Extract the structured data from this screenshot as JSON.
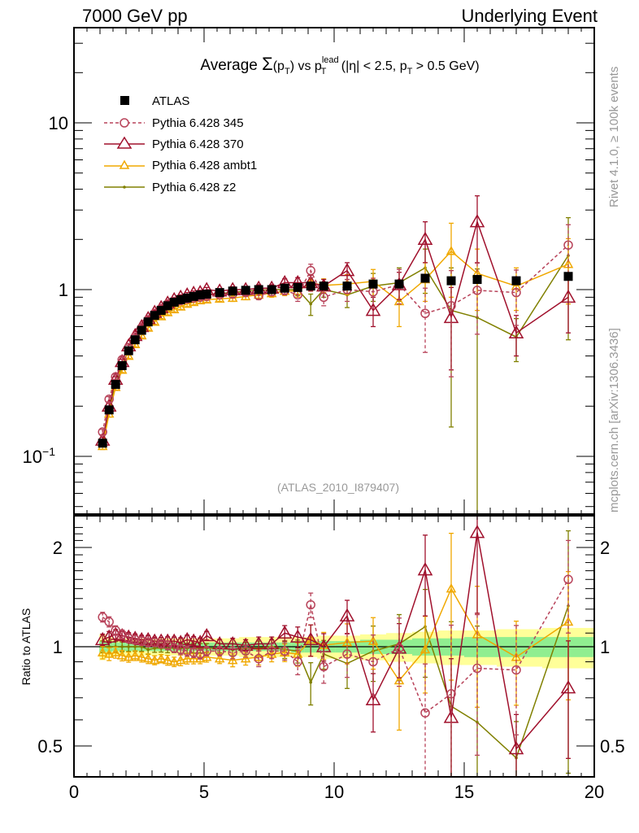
{
  "header": {
    "left": "7000 GeV pp",
    "right": "Underlying Event"
  },
  "side_labels": {
    "rivet": "Rivet 4.1.0, ≥ 100k events",
    "mcplots": "mcplots.cern.ch [arXiv:1306.3436]"
  },
  "analysis_id": "(ATLAS_2010_I879407)",
  "chart_data": [
    {
      "type": "scatter",
      "panel": "main",
      "title": "Average Σ(p_T) vs p_T^lead (|η| < 2.5, p_T > 0.5 GeV)",
      "title_parts": {
        "prefix": "Average ",
        "sigma": "Σ",
        "pt1": "(p",
        "sub1": "T",
        "pt1_close": ")",
        "vs": " vs p",
        "sup_lead": "lead",
        "sub2": "T",
        "cut": " (|η| < 2.5, p",
        "sub3": "T",
        "tail": " > 0.5 GeV)"
      },
      "xlabel": "",
      "ylabel": "",
      "xlim": [
        0,
        20
      ],
      "ylim": [
        0.045,
        40
      ],
      "yscale": "log",
      "x_ticks": [
        "0",
        "5",
        "10",
        "15",
        "20"
      ],
      "y_ticks": [
        {
          "value": 10,
          "label": "10"
        },
        {
          "value": 1,
          "label": "1"
        },
        {
          "value": 0.1,
          "label": "10",
          "sup": "−1"
        }
      ],
      "legend_position": "top-left",
      "x": [
        1.1,
        1.35,
        1.6,
        1.85,
        2.1,
        2.35,
        2.6,
        2.85,
        3.1,
        3.35,
        3.6,
        3.85,
        4.1,
        4.35,
        4.6,
        4.85,
        5.1,
        5.6,
        6.1,
        6.6,
        7.1,
        7.6,
        8.1,
        8.6,
        9.1,
        9.6,
        10.5,
        11.5,
        12.5,
        13.5,
        14.5,
        15.5,
        17.0,
        19.0
      ],
      "series": [
        {
          "name": "ATLAS",
          "color": "#000000",
          "marker": "square",
          "values": [
            0.12,
            0.19,
            0.27,
            0.35,
            0.43,
            0.5,
            0.57,
            0.64,
            0.7,
            0.75,
            0.8,
            0.84,
            0.87,
            0.89,
            0.91,
            0.93,
            0.94,
            0.96,
            0.98,
            0.99,
            1.0,
            1.0,
            1.02,
            1.03,
            1.05,
            1.05,
            1.05,
            1.08,
            1.08,
            1.17,
            1.13,
            1.15,
            1.13,
            1.2
          ]
        },
        {
          "name": "Pythia 6.428 345",
          "color": "#b8435a",
          "marker": "circle",
          "dashed": true,
          "values": [
            0.14,
            0.22,
            0.3,
            0.38,
            0.45,
            0.52,
            0.59,
            0.66,
            0.72,
            0.77,
            0.82,
            0.85,
            0.86,
            0.88,
            0.89,
            0.9,
            0.91,
            0.93,
            0.94,
            0.96,
            0.92,
            0.97,
            0.99,
            0.93,
            1.3,
            0.9,
            1.0,
            0.97,
            1.07,
            0.72,
            0.8,
            0.99,
            0.96,
            1.85
          ],
          "err": [
            0.005,
            0.008,
            0.01,
            0.012,
            0.014,
            0.016,
            0.018,
            0.02,
            0.02,
            0.02,
            0.025,
            0.025,
            0.03,
            0.03,
            0.03,
            0.03,
            0.03,
            0.03,
            0.04,
            0.04,
            0.05,
            0.05,
            0.06,
            0.08,
            0.12,
            0.1,
            0.15,
            0.2,
            0.25,
            0.3,
            0.5,
            0.45,
            0.35,
            0.6
          ]
        },
        {
          "name": "Pythia 6.428 370",
          "color": "#a0102c",
          "marker": "triangle-large",
          "values": [
            0.125,
            0.2,
            0.29,
            0.37,
            0.46,
            0.53,
            0.6,
            0.67,
            0.73,
            0.78,
            0.83,
            0.87,
            0.9,
            0.93,
            0.95,
            0.96,
            1.0,
            0.98,
            1.0,
            1.0,
            1.02,
            1.02,
            1.1,
            1.1,
            1.1,
            1.05,
            1.3,
            0.75,
            1.07,
            2.0,
            0.68,
            2.55,
            0.55,
            0.9
          ],
          "err": [
            0.005,
            0.008,
            0.01,
            0.012,
            0.014,
            0.016,
            0.018,
            0.02,
            0.02,
            0.02,
            0.025,
            0.025,
            0.03,
            0.03,
            0.03,
            0.03,
            0.03,
            0.03,
            0.04,
            0.04,
            0.05,
            0.05,
            0.06,
            0.08,
            0.12,
            0.1,
            0.15,
            0.15,
            0.2,
            0.55,
            0.35,
            1.1,
            0.15,
            0.35
          ]
        },
        {
          "name": "Pythia 6.428 ambt1",
          "color": "#f0a800",
          "marker": "triangle-small",
          "values": [
            0.115,
            0.18,
            0.26,
            0.33,
            0.4,
            0.47,
            0.53,
            0.59,
            0.64,
            0.69,
            0.73,
            0.76,
            0.79,
            0.82,
            0.84,
            0.86,
            0.87,
            0.88,
            0.89,
            0.91,
            0.93,
            0.95,
            0.98,
            0.98,
            1.1,
            1.06,
            1.08,
            1.12,
            0.85,
            1.15,
            1.7,
            1.25,
            1.05,
            1.42
          ],
          "err": [
            0.005,
            0.008,
            0.01,
            0.012,
            0.014,
            0.016,
            0.018,
            0.02,
            0.02,
            0.02,
            0.025,
            0.025,
            0.03,
            0.03,
            0.03,
            0.03,
            0.03,
            0.03,
            0.04,
            0.04,
            0.05,
            0.05,
            0.06,
            0.08,
            0.12,
            0.1,
            0.15,
            0.2,
            0.25,
            0.3,
            0.8,
            0.5,
            0.3,
            0.6
          ]
        },
        {
          "name": "Pythia 6.428 z2",
          "color": "#808000",
          "marker": "dot",
          "values": [
            0.12,
            0.19,
            0.27,
            0.35,
            0.43,
            0.5,
            0.57,
            0.63,
            0.69,
            0.74,
            0.79,
            0.83,
            0.86,
            0.88,
            0.9,
            0.92,
            0.93,
            0.95,
            0.96,
            0.98,
            0.99,
            1.0,
            1.0,
            1.0,
            0.82,
            1.0,
            0.93,
            1.05,
            1.1,
            1.35,
            0.75,
            0.68,
            0.52,
            1.6
          ],
          "err": [
            0.005,
            0.008,
            0.01,
            0.012,
            0.014,
            0.016,
            0.018,
            0.02,
            0.02,
            0.02,
            0.025,
            0.025,
            0.03,
            0.03,
            0.03,
            0.03,
            0.03,
            0.03,
            0.04,
            0.04,
            0.05,
            0.05,
            0.06,
            0.08,
            0.12,
            0.1,
            0.15,
            0.2,
            0.25,
            0.4,
            0.6,
            0.65,
            0.15,
            1.1
          ]
        }
      ]
    },
    {
      "type": "scatter",
      "panel": "ratio",
      "ylabel": "Ratio to ATLAS",
      "xlim": [
        0,
        20
      ],
      "ylim": [
        0.4,
        2.35
      ],
      "yscale": "log",
      "y_ticks": [
        {
          "value": 2,
          "label": "2"
        },
        {
          "value": 1,
          "label": "1"
        },
        {
          "value": 0.5,
          "label": "0.5"
        }
      ],
      "x_ticks": [
        "0",
        "5",
        "10",
        "15",
        "20"
      ],
      "bands": {
        "stat_color": "#90ee90",
        "total_color": "#ffff99",
        "stat_halfwidth": [
          0.04,
          0.035,
          0.03,
          0.03,
          0.03,
          0.03,
          0.03,
          0.03,
          0.03,
          0.03,
          0.03,
          0.03,
          0.03,
          0.03,
          0.03,
          0.03,
          0.03,
          0.03,
          0.03,
          0.03,
          0.03,
          0.03,
          0.03,
          0.04,
          0.04,
          0.04,
          0.04,
          0.05,
          0.05,
          0.06,
          0.06,
          0.07,
          0.07,
          0.07
        ],
        "total_halfwidth": [
          0.09,
          0.07,
          0.06,
          0.06,
          0.06,
          0.06,
          0.06,
          0.06,
          0.06,
          0.06,
          0.06,
          0.06,
          0.06,
          0.06,
          0.06,
          0.06,
          0.06,
          0.06,
          0.06,
          0.07,
          0.07,
          0.07,
          0.07,
          0.07,
          0.07,
          0.08,
          0.08,
          0.09,
          0.1,
          0.11,
          0.12,
          0.12,
          0.13,
          0.14
        ]
      },
      "series": [
        {
          "name": "Pythia 6.428 345",
          "values": [
            1.23,
            1.19,
            1.12,
            1.09,
            1.06,
            1.05,
            1.04,
            1.03,
            1.03,
            1.02,
            1.01,
            0.99,
            0.98,
            0.97,
            0.96,
            0.95,
            0.97,
            0.97,
            0.96,
            0.97,
            0.92,
            0.97,
            0.97,
            0.9,
            1.34,
            0.87,
            0.95,
            0.9,
            0.99,
            0.63,
            0.72,
            0.86,
            0.85,
            1.6
          ]
        },
        {
          "name": "Pythia 6.428 370",
          "values": [
            1.05,
            1.07,
            1.09,
            1.08,
            1.07,
            1.06,
            1.05,
            1.05,
            1.04,
            1.04,
            1.04,
            1.04,
            1.03,
            1.05,
            1.04,
            1.03,
            1.08,
            1.02,
            1.02,
            1.01,
            1.02,
            1.02,
            1.1,
            1.07,
            1.05,
            1.0,
            1.24,
            0.69,
            0.99,
            1.71,
            0.61,
            2.22,
            0.49,
            0.75
          ]
        },
        {
          "name": "Pythia 6.428 ambt1",
          "values": [
            0.96,
            0.95,
            0.96,
            0.94,
            0.93,
            0.94,
            0.93,
            0.92,
            0.91,
            0.92,
            0.91,
            0.9,
            0.91,
            0.92,
            0.92,
            0.92,
            0.93,
            0.92,
            0.91,
            0.92,
            0.93,
            0.95,
            0.96,
            0.95,
            1.05,
            1.01,
            1.03,
            1.04,
            0.79,
            0.98,
            1.5,
            1.09,
            0.93,
            1.19
          ]
        },
        {
          "name": "Pythia 6.428 z2",
          "values": [
            1.0,
            1.0,
            1.0,
            1.0,
            1.0,
            1.0,
            1.0,
            0.98,
            0.99,
            0.99,
            0.99,
            0.99,
            0.99,
            0.99,
            0.99,
            0.99,
            0.99,
            0.99,
            0.98,
            0.99,
            0.99,
            1.0,
            0.98,
            0.97,
            0.78,
            0.95,
            0.89,
            0.97,
            1.02,
            1.15,
            0.66,
            0.59,
            0.46,
            1.33
          ]
        }
      ]
    }
  ]
}
